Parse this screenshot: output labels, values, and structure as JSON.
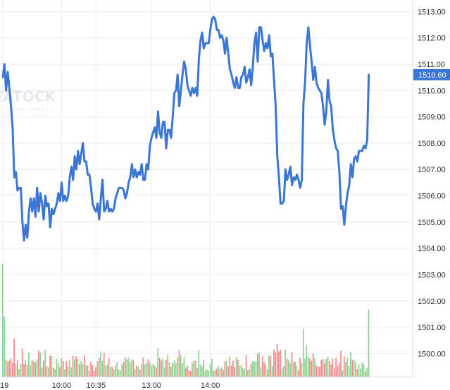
{
  "watermark": {
    "text": "TATOCK",
    "tagline": "trade always"
  },
  "chart_data": {
    "type": "line",
    "ylim": [
      1499.1,
      1513.25
    ],
    "yticks": [
      1500,
      1501,
      1502,
      1503,
      1504,
      1505,
      1506,
      1507,
      1508,
      1509,
      1510,
      1511,
      1512,
      1513
    ],
    "ytick_labels": [
      "1500.00",
      "1501.00",
      "1502.00",
      "1503.00",
      "1504.00",
      "1505.00",
      "1506.00",
      "1507.00",
      "1508.00",
      "1509.00",
      "1510.00",
      "1511.00",
      "1512.00",
      "1513.00"
    ],
    "xticks": [
      {
        "label": "19",
        "pos": 0
      },
      {
        "label": "10:00",
        "pos": 36
      },
      {
        "label": "10:35",
        "pos": 57
      },
      {
        "label": "13:00",
        "pos": 91
      },
      {
        "label": "14:00",
        "pos": 127
      }
    ],
    "last_price": 1510.6,
    "last_price_label": "1510.60",
    "colors": {
      "line": "#3a76d4",
      "up": "#8fd18f",
      "down": "#f08a8a",
      "grid": "#eeeeee",
      "badge": "#3a76d4",
      "badge_text": "#ffffff"
    },
    "price": [
      1510.5,
      1511.0,
      1510.0,
      1510.7,
      1510.1,
      1509.4,
      1508.6,
      1506.7,
      1506.9,
      1506.2,
      1506.3,
      1506.3,
      1505.0,
      1504.3,
      1504.9,
      1504.4,
      1505.4,
      1505.9,
      1505.4,
      1505.9,
      1505.2,
      1506.3,
      1505.4,
      1506.1,
      1505.7,
      1505.1,
      1506.0,
      1505.6,
      1505.7,
      1504.8,
      1505.5,
      1505.3,
      1505.5,
      1505.7,
      1506.1,
      1505.8,
      1506.5,
      1505.8,
      1506.0,
      1505.8,
      1506.0,
      1506.7,
      1507.1,
      1506.6,
      1507.5,
      1507.0,
      1507.7,
      1507.2,
      1507.6,
      1508.0,
      1507.3,
      1507.3,
      1506.8,
      1506.8,
      1506.3,
      1505.7,
      1505.5,
      1505.4,
      1505.7,
      1505.1,
      1505.9,
      1506.6,
      1505.4,
      1505.5,
      1505.8,
      1505.4,
      1505.5,
      1505.4,
      1505.5,
      1505.9,
      1506.1,
      1506.3,
      1506.3,
      1506.3,
      1506.2,
      1505.9,
      1506.1,
      1506.5,
      1506.7,
      1507.2,
      1506.7,
      1507.0,
      1506.7,
      1506.9,
      1506.8,
      1507.2,
      1506.6,
      1506.6,
      1507.2,
      1507.0,
      1507.9,
      1508.2,
      1508.4,
      1508.6,
      1508.2,
      1509.2,
      1508.4,
      1508.2,
      1508.8,
      1508.8,
      1507.8,
      1508.5,
      1508.5,
      1508.2,
      1509.0,
      1509.9,
      1510.0,
      1510.6,
      1509.4,
      1510.0,
      1510.6,
      1511.1,
      1510.8,
      1510.2,
      1510.0,
      1509.8,
      1510.1,
      1509.9,
      1510.1,
      1509.8,
      1511.2,
      1511.9,
      1512.2,
      1511.6,
      1511.8,
      1511.8,
      1511.8,
      1512.3,
      1512.7,
      1512.8,
      1512.7,
      1512.3,
      1512.3,
      1512.0,
      1512.1,
      1511.9,
      1511.4,
      1512.0,
      1511.4,
      1510.8,
      1510.6,
      1510.3,
      1510.1,
      1510.5,
      1510.1,
      1510.1,
      1510.5,
      1510.6,
      1510.9,
      1510.3,
      1510.5,
      1510.8,
      1510.2,
      1510.9,
      1511.8,
      1512.2,
      1511.1,
      1512.4,
      1512.4,
      1511.9,
      1511.5,
      1511.8,
      1511.6,
      1512.1,
      1511.3,
      1511.4,
      1510.4,
      1509.4,
      1507.5,
      1506.7,
      1505.7,
      1505.7,
      1505.8,
      1507.0,
      1506.6,
      1506.8,
      1507.1,
      1506.4,
      1506.7,
      1506.6,
      1506.8,
      1506.6,
      1506.3,
      1506.6,
      1509.5,
      1510.3,
      1511.8,
      1512.4,
      1511.7,
      1511.1,
      1510.4,
      1510.9,
      1510.3,
      1510.1,
      1510.0,
      1509.9,
      1509.4,
      1508.7,
      1509.2,
      1510.4,
      1509.6,
      1509.4,
      1508.5,
      1508.1,
      1507.8,
      1507.7,
      1506.9,
      1505.5,
      1505.6,
      1504.9,
      1505.6,
      1506.1,
      1506.4,
      1507.2,
      1506.7,
      1507.4,
      1507.5,
      1507.3,
      1507.7,
      1507.7,
      1507.7,
      1507.9,
      1507.8,
      1508.1,
      1510.6
    ]
  }
}
